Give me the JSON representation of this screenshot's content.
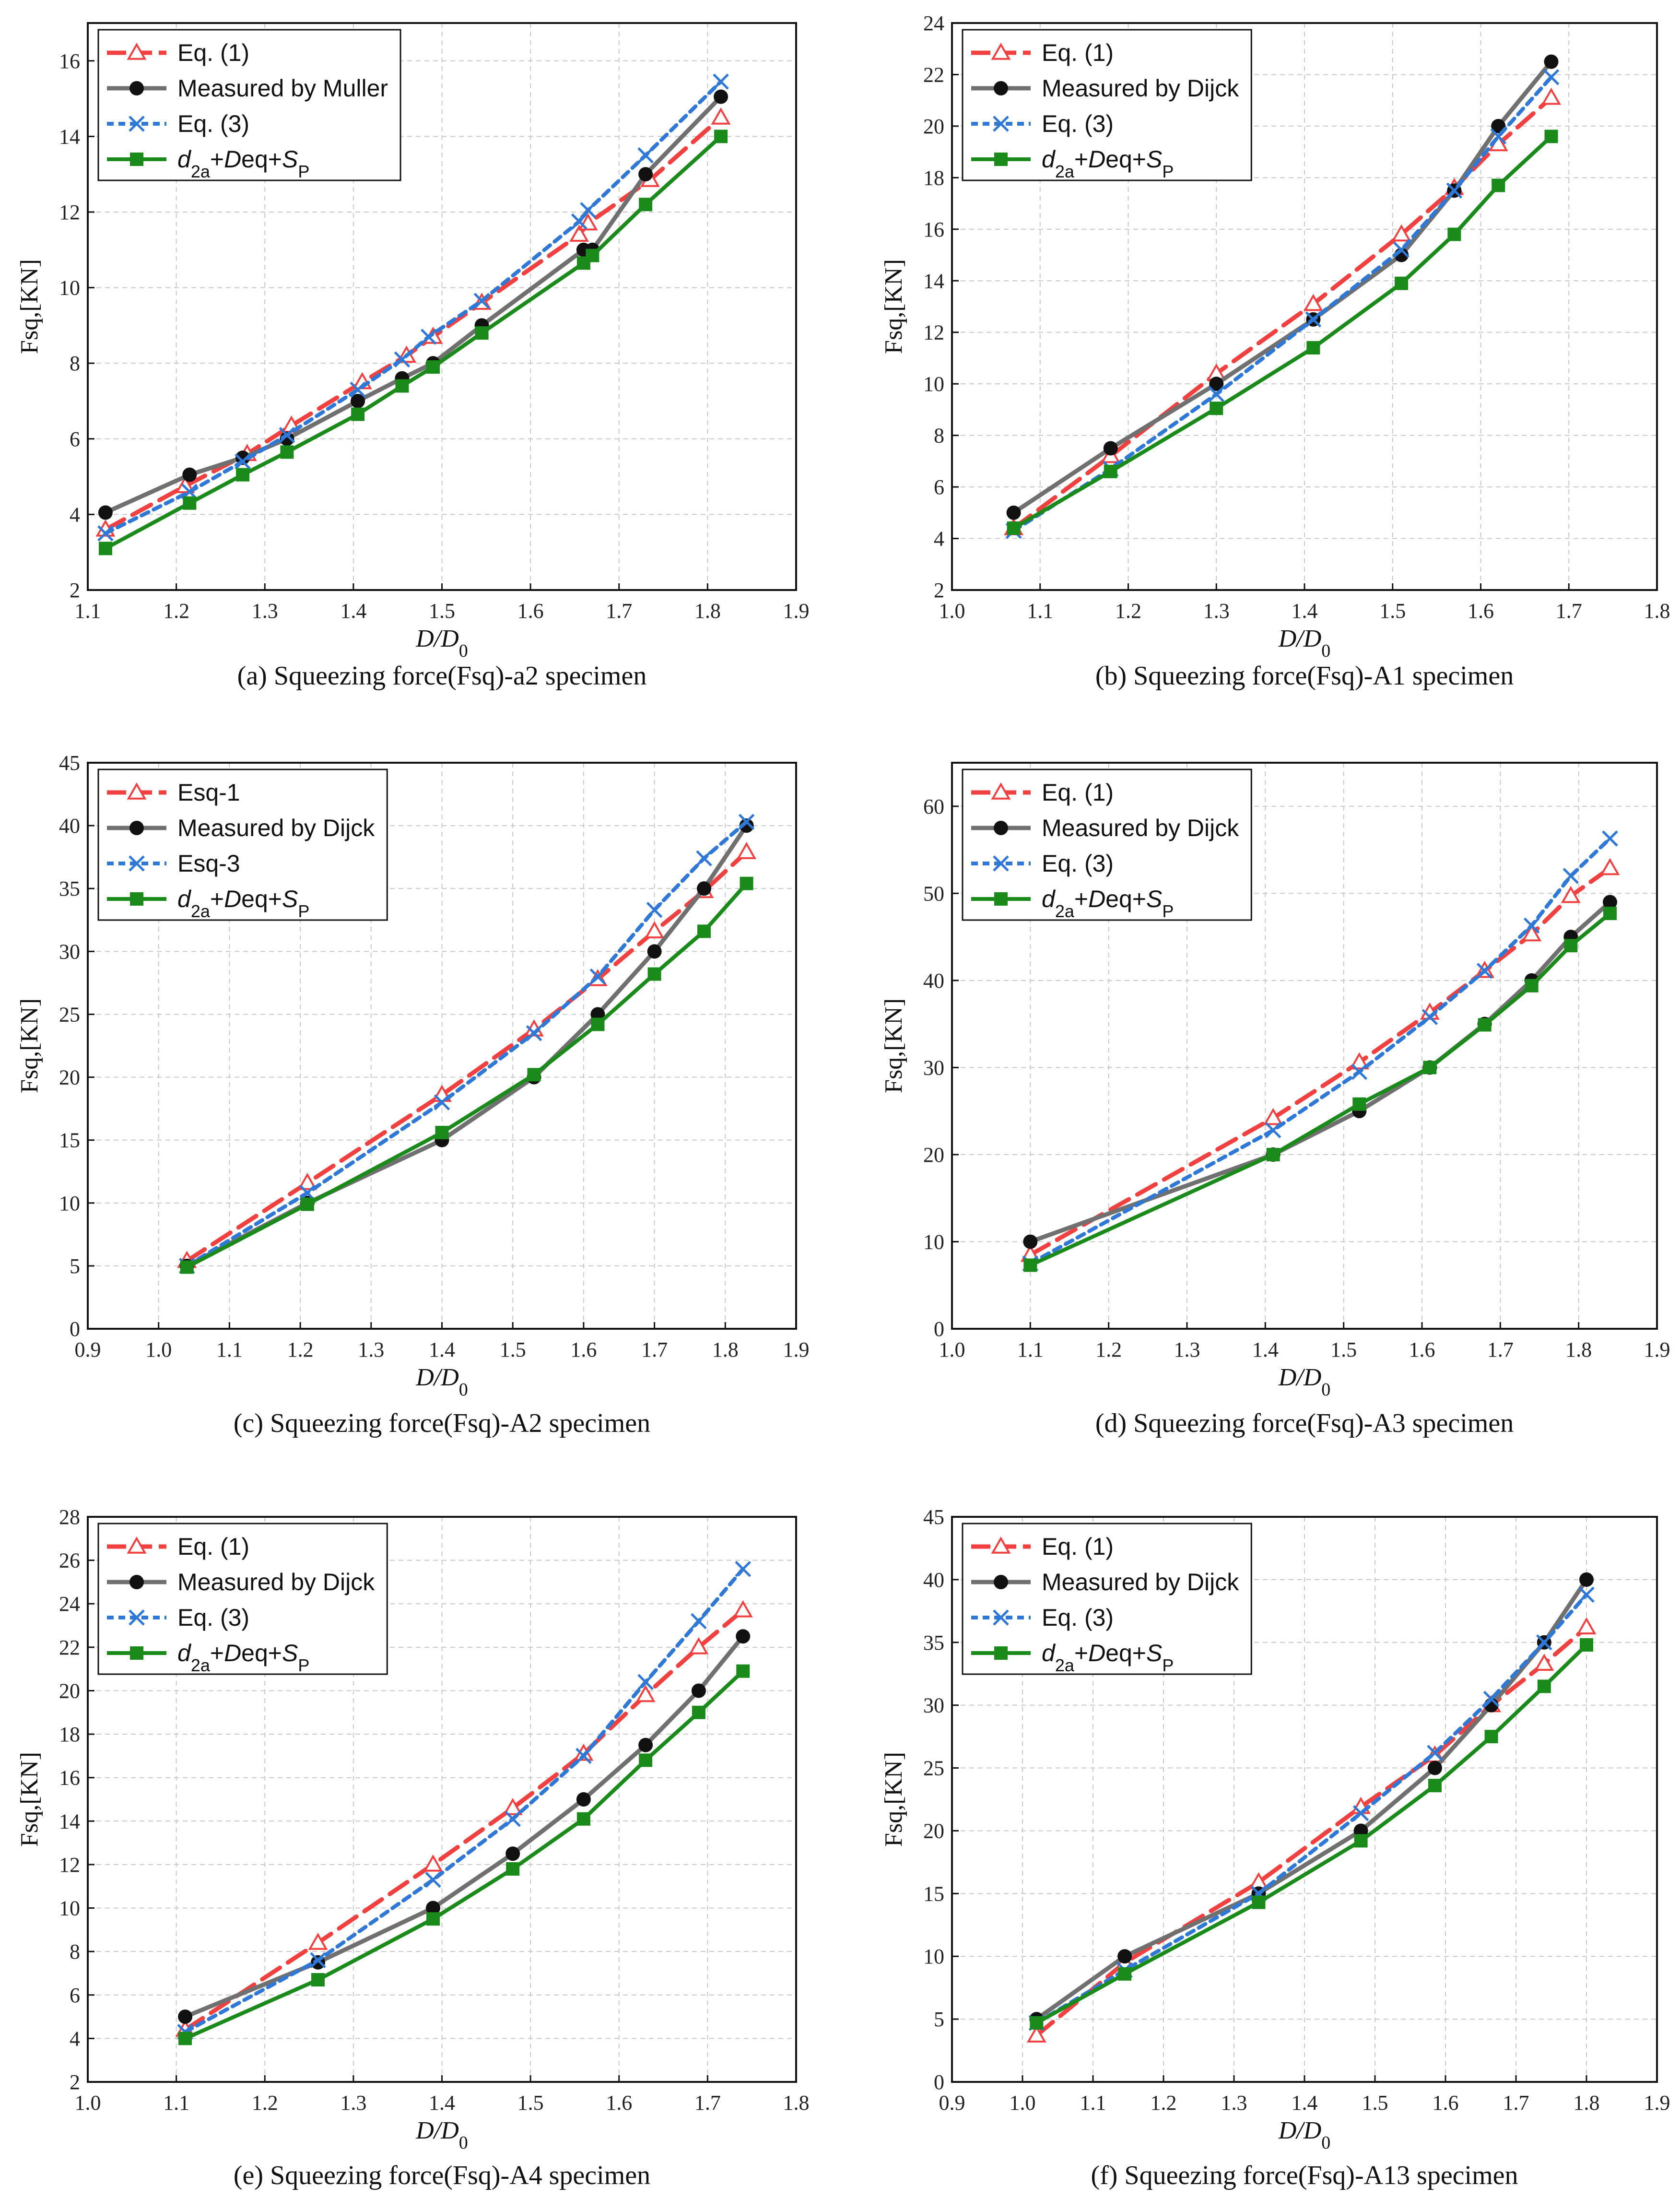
{
  "colors": {
    "eq1": "#f04040",
    "measured": "#707070",
    "eq3": "#2f78d6",
    "d2a": "#1a8a1a",
    "marker_dark": "#111111",
    "grid": "#c8c8c8"
  },
  "chart_data": [
    {
      "type": "line",
      "caption": "(a)  Squeezing force(Fsq)-a2 specimen",
      "ylabel": "Fsq,[KN]",
      "xlabel": "D/D",
      "xlabel_sub": "0",
      "xlim": [
        1.1,
        1.9
      ],
      "ylim": [
        2,
        17
      ],
      "xticks": [
        "1.1",
        "1.2",
        "1.3",
        "1.4",
        "1.5",
        "1.6",
        "1.7",
        "1.8",
        "1.9"
      ],
      "yticks": [
        "2",
        "4",
        "6",
        "8",
        "10",
        "12",
        "14",
        "16"
      ],
      "legend_loc": "top-left",
      "grid": true,
      "series": [
        {
          "name": "Eq. (1)",
          "style": "eq1",
          "x": [
            1.12,
            1.21,
            1.28,
            1.33,
            1.41,
            1.46,
            1.49,
            1.545,
            1.655,
            1.665,
            1.735,
            1.815
          ],
          "y": [
            3.6,
            4.75,
            5.6,
            6.35,
            7.5,
            8.2,
            8.7,
            9.6,
            11.4,
            11.7,
            12.85,
            14.5
          ]
        },
        {
          "name": "Measured by Muller",
          "style": "measured",
          "x": [
            1.12,
            1.215,
            1.275,
            1.325,
            1.405,
            1.455,
            1.49,
            1.545,
            1.66,
            1.67,
            1.73,
            1.815
          ],
          "y": [
            4.05,
            5.05,
            5.5,
            6.0,
            7.0,
            7.6,
            8.0,
            9.0,
            11.0,
            11.0,
            13.0,
            15.05
          ]
        },
        {
          "name": "Eq. (3)",
          "style": "eq3",
          "x": [
            1.12,
            1.215,
            1.275,
            1.325,
            1.405,
            1.455,
            1.485,
            1.545,
            1.655,
            1.665,
            1.73,
            1.815
          ],
          "y": [
            3.5,
            4.6,
            5.4,
            6.1,
            7.3,
            8.1,
            8.7,
            9.65,
            11.75,
            12.05,
            13.5,
            15.45
          ]
        },
        {
          "name": "d2a+Deq+SP",
          "style": "d2a",
          "x": [
            1.12,
            1.215,
            1.275,
            1.325,
            1.405,
            1.455,
            1.49,
            1.545,
            1.66,
            1.67,
            1.73,
            1.815
          ],
          "y": [
            3.1,
            4.3,
            5.05,
            5.65,
            6.65,
            7.4,
            7.9,
            8.8,
            10.65,
            10.85,
            12.2,
            14.0
          ]
        }
      ]
    },
    {
      "type": "line",
      "caption": "(b)  Squeezing force(Fsq)-A1 specimen",
      "ylabel": "Fsq,[KN]",
      "xlabel": "D/D",
      "xlabel_sub": "0",
      "xlim": [
        1.0,
        1.8
      ],
      "ylim": [
        2,
        24
      ],
      "xticks": [
        "1.0",
        "1.1",
        "1.2",
        "1.3",
        "1.4",
        "1.5",
        "1.6",
        "1.7",
        "1.8"
      ],
      "yticks": [
        "2",
        "4",
        "6",
        "8",
        "10",
        "12",
        "14",
        "16",
        "18",
        "20",
        "22",
        "24"
      ],
      "legend_loc": "top-left",
      "grid": true,
      "series": [
        {
          "name": "Eq. (1)",
          "style": "eq1",
          "x": [
            1.07,
            1.18,
            1.3,
            1.41,
            1.51,
            1.57,
            1.62,
            1.68
          ],
          "y": [
            4.4,
            7.2,
            10.4,
            13.1,
            15.8,
            17.6,
            19.3,
            21.1
          ]
        },
        {
          "name": "Measured by Dijck",
          "style": "measured",
          "x": [
            1.07,
            1.18,
            1.3,
            1.41,
            1.51,
            1.57,
            1.62,
            1.68
          ],
          "y": [
            5.0,
            7.5,
            10.0,
            12.5,
            15.0,
            17.5,
            20.0,
            22.5
          ]
        },
        {
          "name": "Eq. (3)",
          "style": "eq3",
          "x": [
            1.07,
            1.18,
            1.3,
            1.41,
            1.51,
            1.57,
            1.62,
            1.68
          ],
          "y": [
            4.3,
            6.7,
            9.6,
            12.5,
            15.2,
            17.5,
            19.6,
            21.9
          ]
        },
        {
          "name": "d2a+Deq+SP",
          "style": "d2a",
          "x": [
            1.07,
            1.18,
            1.3,
            1.41,
            1.51,
            1.57,
            1.62,
            1.68
          ],
          "y": [
            4.4,
            6.6,
            9.05,
            11.4,
            13.9,
            15.8,
            17.7,
            19.6
          ]
        }
      ]
    },
    {
      "type": "line",
      "caption": "(c)  Squeezing force(Fsq)-A2 specimen",
      "ylabel": "Fsq,[KN]",
      "xlabel": "D/D",
      "xlabel_sub": "0",
      "xlim": [
        0.9,
        1.9
      ],
      "ylim": [
        0,
        45
      ],
      "xticks": [
        "0.9",
        "1.0",
        "1.1",
        "1.2",
        "1.3",
        "1.4",
        "1.5",
        "1.6",
        "1.7",
        "1.8",
        "1.9"
      ],
      "yticks": [
        "0",
        "5",
        "10",
        "15",
        "20",
        "25",
        "30",
        "35",
        "40",
        "45"
      ],
      "legend_loc": "top-left",
      "grid": true,
      "series": [
        {
          "name": "Esq-1",
          "style": "eq1",
          "x": [
            1.04,
            1.21,
            1.4,
            1.53,
            1.62,
            1.7,
            1.77,
            1.83
          ],
          "y": [
            5.4,
            11.6,
            18.6,
            23.8,
            27.8,
            31.6,
            34.8,
            37.9
          ]
        },
        {
          "name": "Measured by Dijck",
          "style": "measured",
          "x": [
            1.04,
            1.21,
            1.4,
            1.53,
            1.62,
            1.7,
            1.77,
            1.83
          ],
          "y": [
            5.0,
            10.0,
            15.0,
            20.0,
            25.0,
            30.0,
            35.0,
            40.0
          ]
        },
        {
          "name": "Esq-3",
          "style": "eq3",
          "x": [
            1.04,
            1.21,
            1.4,
            1.53,
            1.62,
            1.7,
            1.77,
            1.83
          ],
          "y": [
            5.0,
            10.8,
            18.0,
            23.5,
            28.0,
            33.3,
            37.4,
            40.3
          ]
        },
        {
          "name": "d2a+Deq+SP",
          "style": "d2a",
          "x": [
            1.04,
            1.21,
            1.4,
            1.53,
            1.62,
            1.7,
            1.77,
            1.83
          ],
          "y": [
            4.9,
            9.9,
            15.6,
            20.2,
            24.2,
            28.2,
            31.6,
            35.4
          ]
        }
      ]
    },
    {
      "type": "line",
      "caption": "(d)  Squeezing force(Fsq)-A3 specimen",
      "ylabel": "Fsq,[KN]",
      "xlabel": "D/D",
      "xlabel_sub": "0",
      "xlim": [
        1.0,
        1.9
      ],
      "ylim": [
        0,
        65
      ],
      "xticks": [
        "1.0",
        "1.1",
        "1.2",
        "1.3",
        "1.4",
        "1.5",
        "1.6",
        "1.7",
        "1.8",
        "1.9"
      ],
      "yticks": [
        "0",
        "10",
        "20",
        "30",
        "40",
        "50",
        "60"
      ],
      "legend_loc": "top-left",
      "grid": true,
      "series": [
        {
          "name": "Eq. (1)",
          "style": "eq1",
          "x": [
            1.1,
            1.41,
            1.52,
            1.61,
            1.68,
            1.74,
            1.79,
            1.84
          ],
          "y": [
            8.5,
            24.2,
            30.6,
            36.3,
            41.1,
            45.3,
            49.7,
            52.9
          ]
        },
        {
          "name": "Measured by Dijck",
          "style": "measured",
          "x": [
            1.1,
            1.41,
            1.52,
            1.61,
            1.68,
            1.74,
            1.79,
            1.84
          ],
          "y": [
            10.0,
            20.0,
            25.0,
            30.0,
            35.0,
            40.0,
            45.0,
            49.0
          ]
        },
        {
          "name": "Eq. (3)",
          "style": "eq3",
          "x": [
            1.1,
            1.41,
            1.52,
            1.61,
            1.68,
            1.74,
            1.79,
            1.84
          ],
          "y": [
            7.5,
            22.8,
            29.5,
            35.8,
            41.1,
            46.3,
            52.0,
            56.3
          ]
        },
        {
          "name": "d2a+Deq+SP",
          "style": "d2a",
          "x": [
            1.1,
            1.41,
            1.52,
            1.61,
            1.68,
            1.74,
            1.79,
            1.84
          ],
          "y": [
            7.3,
            20.0,
            25.8,
            30.0,
            34.9,
            39.4,
            44.0,
            47.7
          ]
        }
      ]
    },
    {
      "type": "line",
      "caption": "(e)  Squeezing force(Fsq)-A4 specimen",
      "ylabel": "Fsq,[KN]",
      "xlabel": "D/D",
      "xlabel_sub": "0",
      "xlim": [
        1.0,
        1.8
      ],
      "ylim": [
        2,
        28
      ],
      "xticks": [
        "1.0",
        "1.1",
        "1.2",
        "1.3",
        "1.4",
        "1.5",
        "1.6",
        "1.7",
        "1.8"
      ],
      "yticks": [
        "2",
        "4",
        "6",
        "8",
        "10",
        "12",
        "14",
        "16",
        "18",
        "20",
        "22",
        "24",
        "26",
        "28"
      ],
      "legend_loc": "top-left",
      "grid": true,
      "series": [
        {
          "name": "Eq. (1)",
          "style": "eq1",
          "x": [
            1.11,
            1.26,
            1.39,
            1.48,
            1.56,
            1.63,
            1.69,
            1.74
          ],
          "y": [
            4.4,
            8.4,
            12.0,
            14.6,
            17.1,
            19.8,
            22.0,
            23.7
          ]
        },
        {
          "name": "Measured by Dijck",
          "style": "measured",
          "x": [
            1.11,
            1.26,
            1.39,
            1.48,
            1.56,
            1.63,
            1.69,
            1.74
          ],
          "y": [
            5.0,
            7.5,
            10.0,
            12.5,
            15.0,
            17.5,
            20.0,
            22.5
          ]
        },
        {
          "name": "Eq. (3)",
          "style": "eq3",
          "x": [
            1.11,
            1.26,
            1.39,
            1.48,
            1.56,
            1.63,
            1.69,
            1.74
          ],
          "y": [
            4.3,
            7.6,
            11.3,
            14.1,
            17.0,
            20.4,
            23.2,
            25.6
          ]
        },
        {
          "name": "d2a+Deq+SP",
          "style": "d2a",
          "x": [
            1.11,
            1.26,
            1.39,
            1.48,
            1.56,
            1.63,
            1.69,
            1.74
          ],
          "y": [
            4.0,
            6.7,
            9.5,
            11.8,
            14.1,
            16.8,
            19.0,
            20.9
          ]
        }
      ]
    },
    {
      "type": "line",
      "caption": "(f)  Squeezing force(Fsq)-A13 specimen",
      "ylabel": "Fsq,[KN]",
      "xlabel": "D/D",
      "xlabel_sub": "0",
      "xlim": [
        0.9,
        1.9
      ],
      "ylim": [
        0,
        45
      ],
      "xticks": [
        "0.9",
        "1.0",
        "1.1",
        "1.2",
        "1.3",
        "1.4",
        "1.5",
        "1.6",
        "1.7",
        "1.8",
        "1.9"
      ],
      "yticks": [
        "0",
        "5",
        "10",
        "15",
        "20",
        "25",
        "30",
        "35",
        "40",
        "45"
      ],
      "legend_loc": "top-left",
      "grid": true,
      "series": [
        {
          "name": "Eq. (1)",
          "style": "eq1",
          "x": [
            1.02,
            1.145,
            1.335,
            1.48,
            1.585,
            1.665,
            1.74,
            1.8
          ],
          "y": [
            3.7,
            9.5,
            15.9,
            21.9,
            26.0,
            30.0,
            33.3,
            36.2
          ]
        },
        {
          "name": "Measured by Dijck",
          "style": "measured",
          "x": [
            1.02,
            1.145,
            1.335,
            1.48,
            1.585,
            1.665,
            1.74,
            1.8
          ],
          "y": [
            5.0,
            10.0,
            15.0,
            20.0,
            25.0,
            30.0,
            35.0,
            40.0
          ]
        },
        {
          "name": "Eq. (3)",
          "style": "eq3",
          "x": [
            1.02,
            1.145,
            1.335,
            1.48,
            1.585,
            1.665,
            1.74,
            1.8
          ],
          "y": [
            4.7,
            8.9,
            15.0,
            21.4,
            26.2,
            30.5,
            35.0,
            38.8
          ]
        },
        {
          "name": "d2a+Deq+SP",
          "style": "d2a",
          "x": [
            1.02,
            1.145,
            1.335,
            1.48,
            1.585,
            1.665,
            1.74,
            1.8
          ],
          "y": [
            4.7,
            8.6,
            14.3,
            19.2,
            23.6,
            27.5,
            31.5,
            34.8
          ]
        }
      ]
    }
  ]
}
